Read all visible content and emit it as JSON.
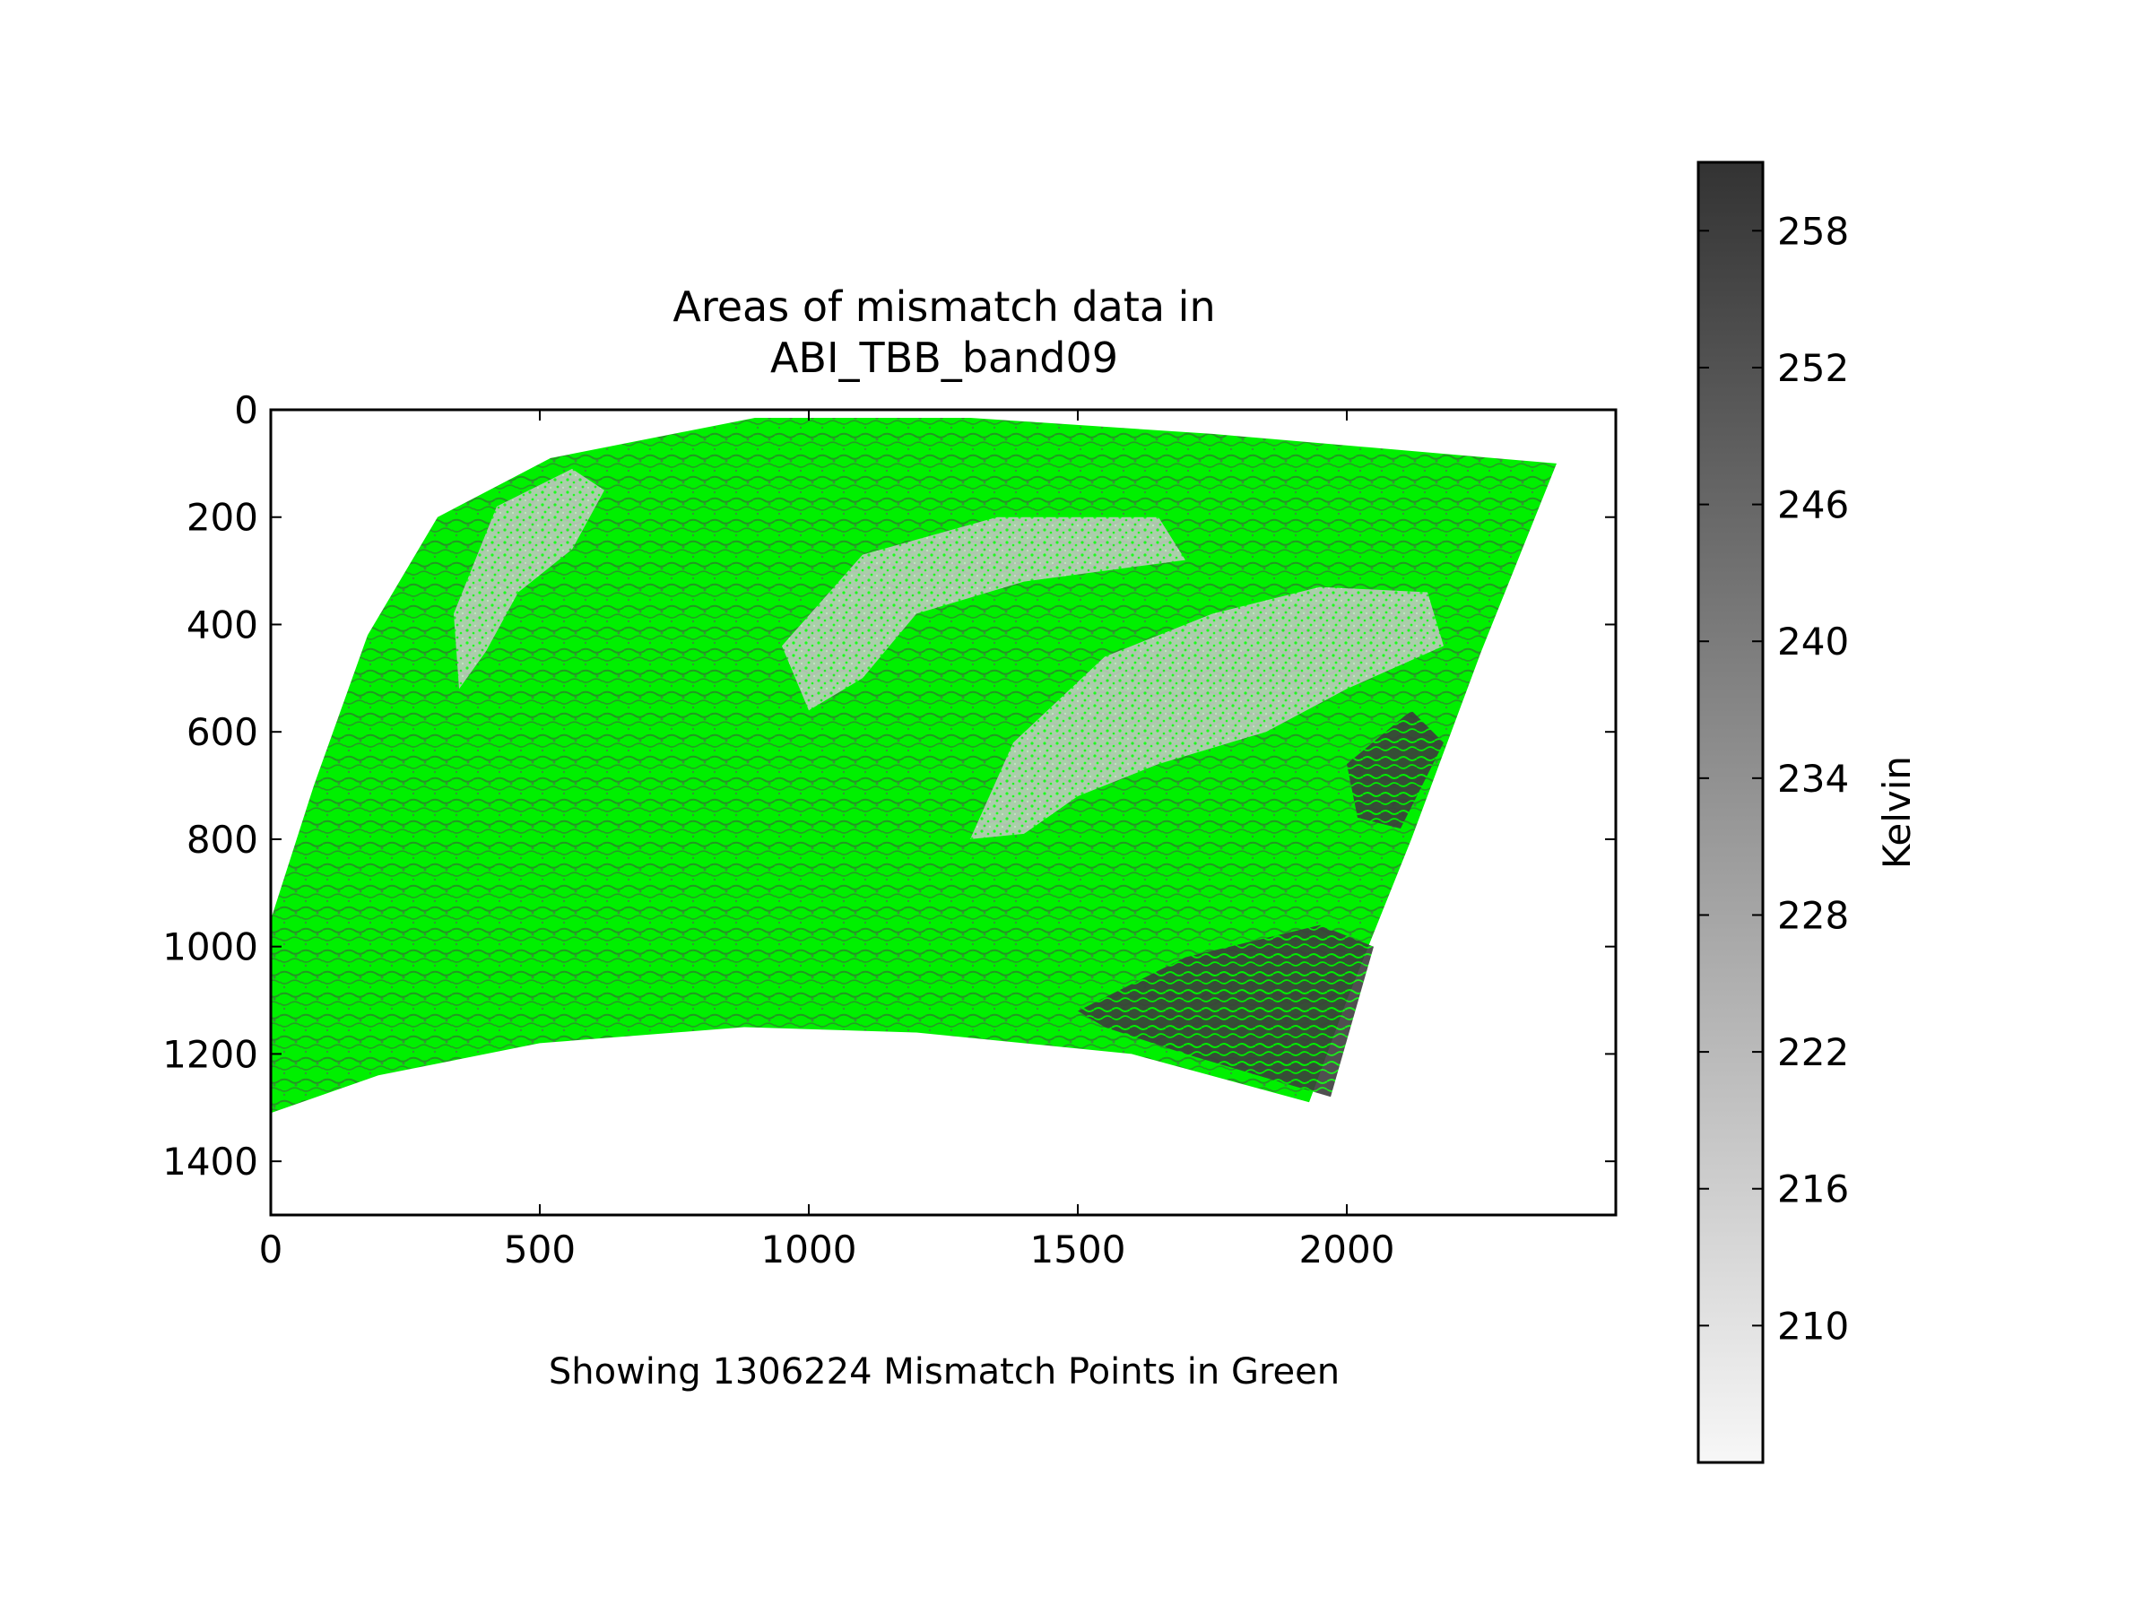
{
  "chart_data": {
    "type": "heatmap",
    "title_lines": [
      "Areas of mismatch data in",
      "ABI_TBB_band09"
    ],
    "footer": "Showing 1306224 Mismatch Points in Green",
    "xlabel": "",
    "ylabel": "",
    "xlim": [
      0,
      2500
    ],
    "ylim": [
      1500,
      0
    ],
    "y_inverted": true,
    "x_ticks": [
      0,
      500,
      1000,
      1500,
      2000
    ],
    "y_ticks": [
      0,
      200,
      400,
      600,
      800,
      1000,
      1200,
      1400
    ],
    "grid": false,
    "colorbar": {
      "label": "Kelvin",
      "range": [
        204,
        261
      ],
      "ticks": [
        210,
        216,
        222,
        228,
        234,
        240,
        246,
        252,
        258
      ],
      "colormap": "greys",
      "low_color": "#f7f7f7",
      "high_color": "#333333"
    },
    "mismatch_count": 1306224,
    "mismatch_color": "#00ff00",
    "data_region_outline": [
      [
        310,
        200
      ],
      [
        520,
        90
      ],
      [
        900,
        15
      ],
      [
        1300,
        15
      ],
      [
        1750,
        45
      ],
      [
        2390,
        100
      ],
      [
        2250,
        450
      ],
      [
        2120,
        800
      ],
      [
        2000,
        1100
      ],
      [
        1930,
        1290
      ],
      [
        1600,
        1200
      ],
      [
        1200,
        1160
      ],
      [
        880,
        1150
      ],
      [
        500,
        1180
      ],
      [
        200,
        1240
      ],
      [
        0,
        1310
      ],
      [
        0,
        950
      ],
      [
        80,
        700
      ],
      [
        180,
        420
      ],
      [
        310,
        200
      ]
    ],
    "cloud_regions": [
      {
        "label": "",
        "outline": [
          [
            340,
            380
          ],
          [
            420,
            180
          ],
          [
            560,
            110
          ],
          [
            620,
            150
          ],
          [
            560,
            260
          ],
          [
            460,
            340
          ],
          [
            400,
            450
          ],
          [
            350,
            520
          ]
        ]
      },
      {
        "label": "",
        "outline": [
          [
            950,
            440
          ],
          [
            1100,
            270
          ],
          [
            1350,
            200
          ],
          [
            1650,
            200
          ],
          [
            1700,
            280
          ],
          [
            1400,
            320
          ],
          [
            1200,
            380
          ],
          [
            1100,
            500
          ],
          [
            1000,
            560
          ]
        ]
      },
      {
        "label": "",
        "outline": [
          [
            1300,
            800
          ],
          [
            1380,
            620
          ],
          [
            1550,
            460
          ],
          [
            1750,
            380
          ],
          [
            1950,
            330
          ],
          [
            2150,
            340
          ],
          [
            2180,
            440
          ],
          [
            2000,
            520
          ],
          [
            1850,
            600
          ],
          [
            1650,
            660
          ],
          [
            1500,
            720
          ],
          [
            1400,
            790
          ]
        ]
      }
    ],
    "warm_regions": [
      {
        "label": "",
        "outline": [
          [
            1500,
            1120
          ],
          [
            1700,
            1020
          ],
          [
            1950,
            960
          ],
          [
            2050,
            1000
          ],
          [
            1970,
            1280
          ],
          [
            1700,
            1200
          ],
          [
            1550,
            1150
          ]
        ]
      },
      {
        "label": "",
        "outline": [
          [
            2000,
            660
          ],
          [
            2120,
            560
          ],
          [
            2180,
            620
          ],
          [
            2100,
            780
          ],
          [
            2020,
            760
          ]
        ]
      }
    ]
  }
}
